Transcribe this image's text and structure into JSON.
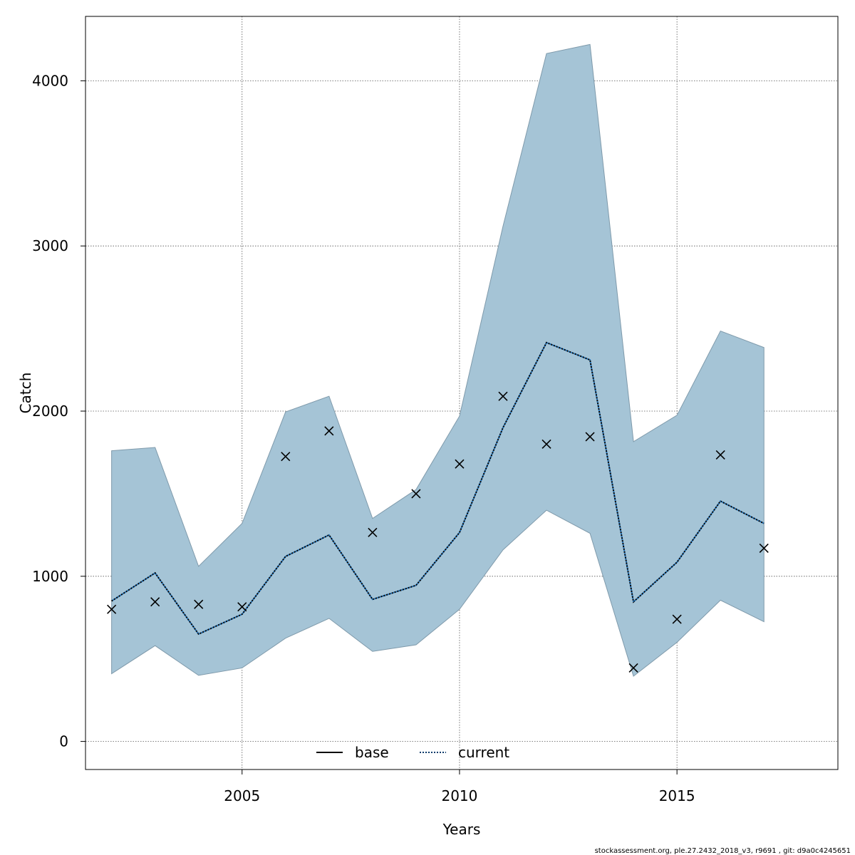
{
  "chart_data": {
    "type": "line",
    "xlabel": "Years",
    "ylabel": "Catch",
    "xlim": [
      2001.4,
      2018.7
    ],
    "ylim": [
      -170,
      4390
    ],
    "x_ticks": [
      2005,
      2010,
      2015
    ],
    "x_tick_labels": [
      "2005",
      "2010",
      "2015"
    ],
    "y_ticks": [
      0,
      1000,
      2000,
      3000,
      4000
    ],
    "y_tick_labels": [
      "0",
      "1000",
      "2000",
      "3000",
      "4000"
    ],
    "grid": true,
    "legend": {
      "placement": "bottom-center",
      "items": [
        {
          "label": "base",
          "style": "solid",
          "color": "#000000"
        },
        {
          "label": "current",
          "style": "dotted",
          "color": "#003a6b"
        }
      ]
    },
    "x": [
      2002,
      2003,
      2004,
      2005,
      2006,
      2007,
      2008,
      2009,
      2010,
      2011,
      2012,
      2013,
      2014,
      2015,
      2016,
      2017
    ],
    "series": [
      {
        "name": "current",
        "kind": "line",
        "values": [
          850,
          1020,
          650,
          770,
          1120,
          1250,
          860,
          945,
          1265,
          1900,
          2415,
          2310,
          845,
          1085,
          1455,
          1320
        ]
      },
      {
        "kind": "band-upper",
        "values": [
          1760,
          1780,
          1060,
          1320,
          1995,
          2090,
          1350,
          1525,
          1970,
          3120,
          4165,
          4220,
          1815,
          1975,
          2485,
          2385
        ]
      },
      {
        "kind": "band-lower",
        "values": [
          410,
          580,
          400,
          445,
          625,
          745,
          545,
          585,
          800,
          1160,
          1400,
          1260,
          395,
          600,
          855,
          725
        ]
      },
      {
        "kind": "observed-points",
        "marker": "x",
        "values": [
          800,
          845,
          830,
          815,
          1725,
          1880,
          1265,
          1500,
          1680,
          2090,
          1800,
          1845,
          445,
          740,
          1735,
          1170
        ]
      }
    ],
    "band_color": "#a5c4d6",
    "band_edge_color": "#7f9aab"
  },
  "footer": {
    "text": "stockassessment.org, ple.27.2432_2018_v3, r9691 , git: d9a0c4245651"
  }
}
